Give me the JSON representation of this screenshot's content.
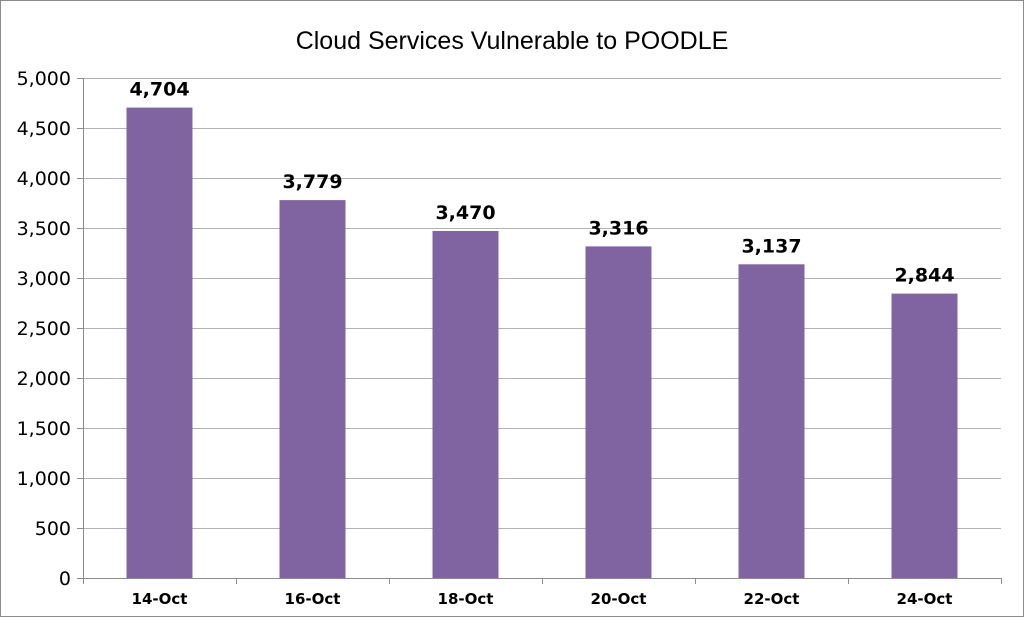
{
  "chart_data": {
    "type": "bar",
    "title": "Cloud Services Vulnerable to POODLE",
    "xlabel": "",
    "ylabel": "",
    "categories": [
      "14-Oct",
      "16-Oct",
      "18-Oct",
      "20-Oct",
      "22-Oct",
      "24-Oct"
    ],
    "values": [
      4704,
      3779,
      3470,
      3316,
      3137,
      2844
    ],
    "data_labels": [
      "4,704",
      "3,779",
      "3,470",
      "3,316",
      "3,137",
      "2,844"
    ],
    "ylim": [
      0,
      5000
    ],
    "yticks": [
      0,
      500,
      1000,
      1500,
      2000,
      2500,
      3000,
      3500,
      4000,
      4500,
      5000
    ],
    "ytick_labels": [
      "0",
      "500",
      "1,000",
      "1,500",
      "2,000",
      "2,500",
      "3,000",
      "3,500",
      "4,000",
      "4,500",
      "5,000"
    ],
    "grid": true,
    "legend": "none",
    "bar_color": "#8064a2",
    "grid_color": "#b3b3b3"
  }
}
